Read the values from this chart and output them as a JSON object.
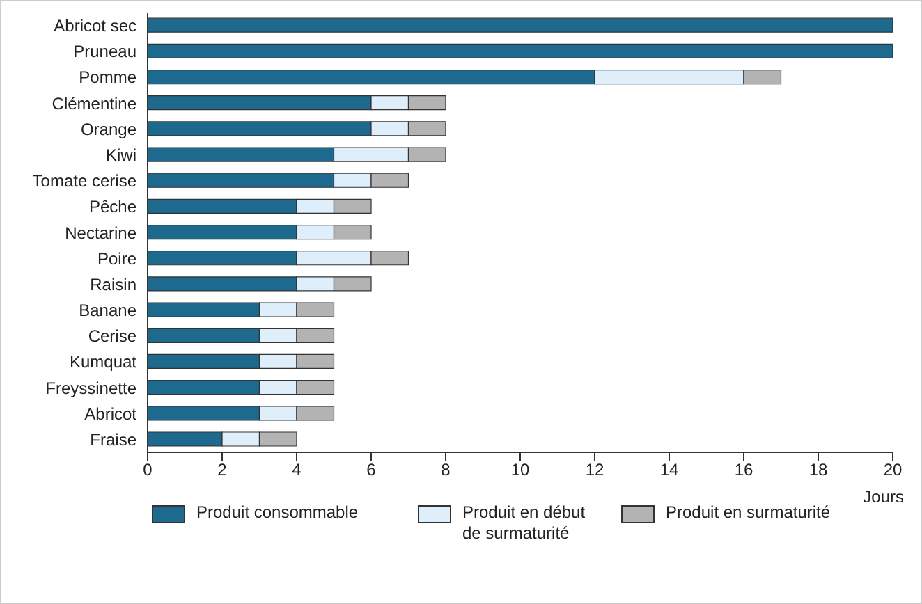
{
  "chart_data": {
    "type": "bar",
    "orientation": "horizontal",
    "stacked": true,
    "xlabel": "Jours",
    "categories": [
      "Abricot sec",
      "Pruneau",
      "Pomme",
      "Clémentine",
      "Orange",
      "Kiwi",
      "Tomate cerise",
      "Pêche",
      "Nectarine",
      "Poire",
      "Raisin",
      "Banane",
      "Cerise",
      "Kumquat",
      "Freyssinette",
      "Abricot",
      "Fraise"
    ],
    "series": [
      {
        "name": "Produit consommable",
        "color": "#1d6a8e",
        "values": [
          20,
          20,
          12,
          6,
          6,
          5,
          5,
          4,
          4,
          4,
          4,
          3,
          3,
          3,
          3,
          3,
          2
        ]
      },
      {
        "name": "Produit en début de surmaturité",
        "color": "#deeefa",
        "values": [
          0,
          0,
          4,
          1,
          1,
          2,
          1,
          1,
          1,
          2,
          1,
          1,
          1,
          1,
          1,
          1,
          1
        ]
      },
      {
        "name": "Produit en  surmaturité",
        "color": "#b3b3b3",
        "values": [
          0,
          0,
          1,
          1,
          1,
          1,
          1,
          1,
          1,
          1,
          1,
          1,
          1,
          1,
          1,
          1,
          1
        ]
      }
    ],
    "xlim": [
      0,
      20
    ],
    "xticks": [
      0,
      2,
      4,
      6,
      8,
      10,
      12,
      14,
      16,
      18,
      20
    ],
    "legend": "bottom"
  }
}
